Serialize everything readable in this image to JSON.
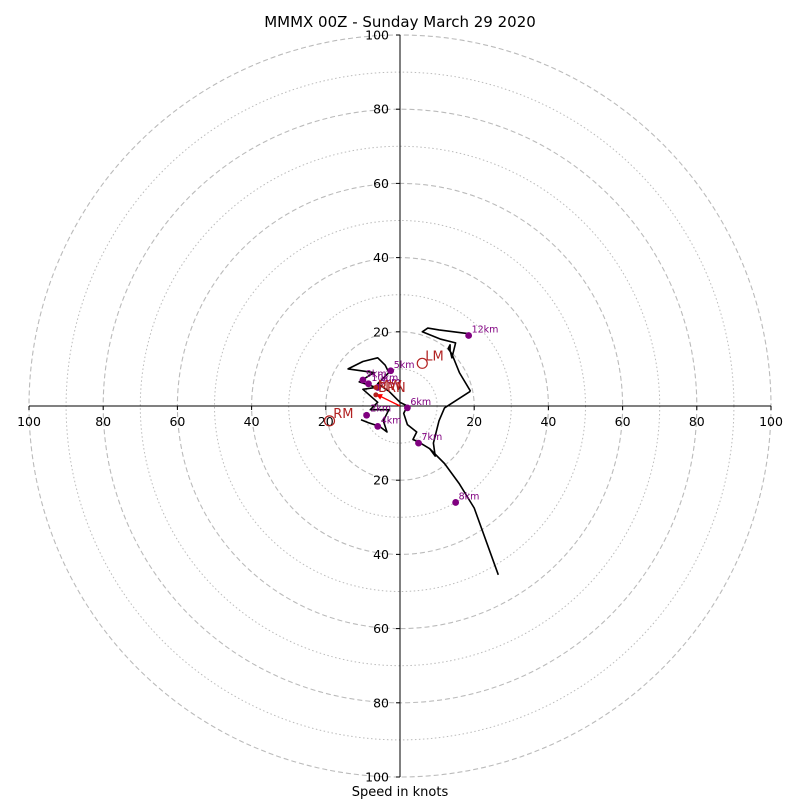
{
  "chart_data": {
    "type": "hodograph",
    "title": "MMMX 00Z - Sunday March 29 2020",
    "xlabel": "Speed in knots",
    "range": [
      -100,
      100
    ],
    "units": "knots",
    "ring_major_speeds": [
      20,
      40,
      60,
      80,
      100
    ],
    "ring_minor_speeds": [
      10,
      30,
      50,
      70,
      90
    ],
    "grid": true,
    "x_ticks": [
      {
        "value": -100,
        "label": "100"
      },
      {
        "value": -80,
        "label": "80"
      },
      {
        "value": -60,
        "label": "60"
      },
      {
        "value": -40,
        "label": "40"
      },
      {
        "value": -20,
        "label": "20"
      },
      {
        "value": 20,
        "label": "20"
      },
      {
        "value": 40,
        "label": "40"
      },
      {
        "value": 60,
        "label": "60"
      },
      {
        "value": 80,
        "label": "80"
      },
      {
        "value": 100,
        "label": "100"
      }
    ],
    "y_ticks": [
      {
        "value": 100,
        "label": "100"
      },
      {
        "value": 80,
        "label": "80"
      },
      {
        "value": 60,
        "label": "60"
      },
      {
        "value": 40,
        "label": "40"
      },
      {
        "value": 20,
        "label": "20"
      },
      {
        "value": -20,
        "label": "20"
      },
      {
        "value": -40,
        "label": "40"
      },
      {
        "value": -60,
        "label": "60"
      },
      {
        "value": -80,
        "label": "80"
      },
      {
        "value": -100,
        "label": "100"
      }
    ],
    "hodograph_trace": [
      [
        -10.5,
        -3.7
      ],
      [
        -8.5,
        -4.5
      ],
      [
        -5.5,
        -5.5
      ],
      [
        -3.5,
        -7.0
      ],
      [
        -4.5,
        -4.0
      ],
      [
        -3.0,
        -1.0
      ],
      [
        -8.0,
        -1.0
      ],
      [
        -6.0,
        1.0
      ],
      [
        -10.0,
        4.5
      ],
      [
        -6.5,
        5.0
      ],
      [
        -11.0,
        6.5
      ],
      [
        -7.0,
        9.0
      ],
      [
        -14.0,
        10.0
      ],
      [
        -10.0,
        12.0
      ],
      [
        -6.0,
        13.0
      ],
      [
        -4.0,
        11.0
      ],
      [
        -3.0,
        9.0
      ],
      [
        -6.0,
        6.0
      ],
      [
        -3.0,
        4.0
      ],
      [
        0.0,
        1.0
      ],
      [
        2.0,
        0.0
      ],
      [
        1.0,
        -2.0
      ],
      [
        2.0,
        -5.0
      ],
      [
        4.5,
        -7.0
      ],
      [
        3.5,
        -9.0
      ],
      [
        5.5,
        -10.0
      ],
      [
        8.0,
        -11.5
      ],
      [
        12.0,
        -15.5
      ],
      [
        16.0,
        -21.0
      ],
      [
        20.0,
        -27.5
      ],
      [
        26.5,
        -45.5
      ]
    ],
    "hodograph_branch": [
      [
        19.0,
        4.0
      ],
      [
        19.0,
        4.0
      ],
      [
        16.0,
        9.0
      ],
      [
        14.0,
        14.0
      ],
      [
        13.0,
        15.5
      ],
      [
        13.5,
        16.5
      ],
      [
        13.5,
        15.0
      ],
      [
        14.0,
        13.0
      ],
      [
        15.0,
        17.0
      ],
      [
        11.0,
        18.0
      ],
      [
        6.0,
        20.0
      ],
      [
        7.5,
        21.0
      ],
      [
        10.5,
        20.5
      ],
      [
        18.5,
        19.5
      ]
    ],
    "hodograph_link": [
      [
        8.0,
        -11.5
      ],
      [
        9.5,
        -13.5
      ],
      [
        9.0,
        -10.0
      ],
      [
        10.5,
        -4.0
      ],
      [
        12.0,
        -0.5
      ],
      [
        19.0,
        4.0
      ]
    ],
    "height_markers": [
      {
        "label": "2km",
        "u": -9.0,
        "v": -2.5,
        "lx": 1.0,
        "ly": 1.0
      },
      {
        "label": "3km",
        "u": -6.0,
        "v": 5.0,
        "lx": 0.5,
        "ly": 0.8
      },
      {
        "label": "4km",
        "u": -6.0,
        "v": -5.5,
        "lx": 0.8,
        "ly": 0.8
      },
      {
        "label": "5km",
        "u": -2.5,
        "v": 9.5,
        "lx": 0.8,
        "ly": 0.8
      },
      {
        "label": "6km",
        "u": 2.0,
        "v": -0.5,
        "lx": 0.8,
        "ly": 0.8
      },
      {
        "label": "7km",
        "u": 5.0,
        "v": -10.0,
        "lx": 0.8,
        "ly": 0.8
      },
      {
        "label": "8km",
        "u": 15.0,
        "v": -26.0,
        "lx": 0.8,
        "ly": 0.8
      },
      {
        "label": "9km",
        "u": -10.0,
        "v": 7.0,
        "lx": 0.8,
        "ly": 0.8
      },
      {
        "label": "10km",
        "u": -8.5,
        "v": 6.0,
        "lx": 0.8,
        "ly": 0.8
      },
      {
        "label": "12km",
        "u": 18.5,
        "v": 19.0,
        "lx": 0.8,
        "ly": 0.8
      }
    ],
    "motion_markers": [
      {
        "label": "RM",
        "u": -19.0,
        "v": -4.0,
        "lx": 1.0,
        "ly": 0.7
      },
      {
        "label": "LM",
        "u": 6.0,
        "v": 11.5,
        "lx": 0.8,
        "ly": 0.8
      },
      {
        "label": "MW",
        "u": -6.5,
        "v": 5.0,
        "lx": 0.5,
        "ly": -0.7
      },
      {
        "label": "BRN",
        "u": -6.5,
        "v": 3.0,
        "lx": 0.6,
        "ly": 0.8
      }
    ],
    "shear_vector": {
      "from": [
        0,
        0
      ],
      "to": [
        -6.5,
        3.2
      ]
    },
    "colors": {
      "trace": "#000000",
      "height_dots": "#800080",
      "motion": "#b22222",
      "shear": "#ff0000",
      "grid": "#bbbbbb"
    }
  }
}
